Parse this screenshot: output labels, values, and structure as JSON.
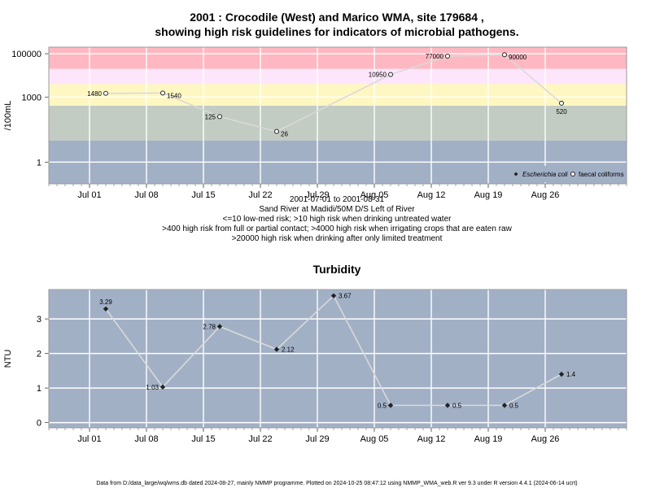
{
  "chart_data": [
    {
      "type": "line",
      "title_lines": [
        "2001 : Crocodile (West) and Marico WMA, site 179684 ,",
        "showing high risk guidelines for indicators of microbial pathogens."
      ],
      "ylabel": "/100mL",
      "y_scale": "log",
      "ylim": [
        0.1,
        200000
      ],
      "y_ticks": [
        1,
        1000,
        100000
      ],
      "y_tick_labels": [
        "1",
        "1000",
        "100000"
      ],
      "x_range": [
        "2001-06-26",
        "2001-09-05"
      ],
      "x_ticks": [
        "2001-07-01",
        "2001-07-08",
        "2001-07-15",
        "2001-07-22",
        "2001-07-29",
        "2001-08-05",
        "2001-08-12",
        "2001-08-19",
        "2001-08-26"
      ],
      "x_tick_labels": [
        "Jul 01",
        "Jul 08",
        "Jul 15",
        "Jul 22",
        "Jul 29",
        "Aug 05",
        "Aug 12",
        "Aug 19",
        "Aug 26"
      ],
      "grid": true,
      "risk_bands": [
        {
          "from": 0.1,
          "to": 10,
          "color": "#a2b0c6"
        },
        {
          "from": 10,
          "to": 400,
          "color": "#c2ccc2"
        },
        {
          "from": 400,
          "to": 4000,
          "color": "#fff7c2"
        },
        {
          "from": 4000,
          "to": 20000,
          "color": "#fde6fb"
        },
        {
          "from": 20000,
          "to": 200000,
          "color": "#ffb8c2"
        }
      ],
      "series": [
        {
          "name": "faecal coliforms",
          "marker": "open-circle",
          "color": "#d9d9d9",
          "x": [
            "2001-07-03",
            "2001-07-10",
            "2001-07-17",
            "2001-07-24",
            "2001-08-07",
            "2001-08-14",
            "2001-08-21",
            "2001-08-28"
          ],
          "y": [
            1480,
            1540,
            125,
            26,
            10950,
            77000,
            90000,
            520
          ],
          "labels": [
            "1480",
            "1540",
            "125",
            "26",
            "10950",
            "77000",
            "90000",
            "520"
          ],
          "label_side": [
            "left",
            "right",
            "left",
            "right",
            "left",
            "left",
            "right",
            "below"
          ]
        }
      ],
      "legend": {
        "placement": "bottom-right",
        "entries": [
          "Escherichia coli",
          "faecal coliforms"
        ]
      },
      "caption_lines": [
        "2001-07-01 to 2001-08-31",
        "Sand River at Madidi/50M D/S Left of River",
        "<=10 low-med risk; >10 high risk when drinking untreated water",
        ">400 high risk from full or partial contact; >4000 high risk when irrigating crops that are eaten raw",
        ">20000 high risk when drinking after only limited treatment"
      ]
    },
    {
      "type": "line",
      "title": "Turbidity",
      "ylabel": "NTU",
      "ylim": [
        -0.15,
        3.85
      ],
      "y_ticks": [
        0,
        1,
        2,
        3
      ],
      "y_tick_labels": [
        "0",
        "1",
        "2",
        "3"
      ],
      "x_range": [
        "2001-06-26",
        "2001-09-05"
      ],
      "x_ticks": [
        "2001-07-01",
        "2001-07-08",
        "2001-07-15",
        "2001-07-22",
        "2001-07-29",
        "2001-08-05",
        "2001-08-12",
        "2001-08-19",
        "2001-08-26"
      ],
      "x_tick_labels": [
        "Jul 01",
        "Jul 08",
        "Jul 15",
        "Jul 22",
        "Jul 29",
        "Aug 05",
        "Aug 12",
        "Aug 19",
        "Aug 26"
      ],
      "grid": true,
      "background": "#a2b0c6",
      "series": [
        {
          "marker": "filled-diamond",
          "color": "#d9d9d9",
          "x": [
            "2001-07-03",
            "2001-07-10",
            "2001-07-17",
            "2001-07-24",
            "2001-07-31",
            "2001-08-07",
            "2001-08-14",
            "2001-08-21",
            "2001-08-28"
          ],
          "y": [
            3.29,
            1.03,
            2.78,
            2.12,
            3.67,
            0.5,
            0.5,
            0.5,
            1.4
          ],
          "labels": [
            "3.29",
            "1.03",
            "2.78",
            "2.12",
            "3.67",
            "0.5",
            "0.5",
            "0.5",
            "1.4"
          ],
          "label_side": [
            "above",
            "left",
            "left",
            "right",
            "right",
            "left",
            "right",
            "right",
            "right"
          ]
        }
      ]
    }
  ],
  "footer": "Data from D:/data_large/wq/wms.db dated 2024-08-27, mainly NMMP programme. Plotted on 2024-10-25 08:47:12 using NMMP_WMA_web.R ver 9.3 under R version 4.4.1 (2024-06-14 ucrt)"
}
